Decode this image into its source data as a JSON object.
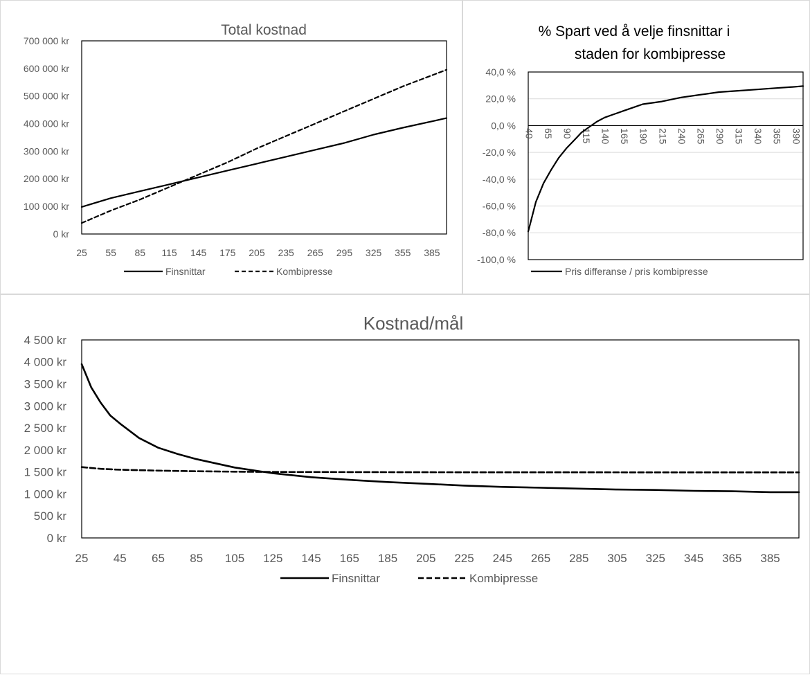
{
  "chart_data": [
    {
      "type": "line",
      "title": "Total kostnad",
      "xlabel": "",
      "ylabel": "",
      "x_ticks": [
        "25",
        "55",
        "85",
        "115",
        "145",
        "175",
        "205",
        "235",
        "265",
        "295",
        "325",
        "355",
        "385"
      ],
      "y_ticks": [
        "0 kr",
        "100 000 kr",
        "200 000 kr",
        "300 000 kr",
        "400 000 kr",
        "500 000 kr",
        "600 000 kr",
        "700 000 kr"
      ],
      "xlim": [
        25,
        400
      ],
      "ylim": [
        0,
        700000
      ],
      "grid": false,
      "legend_position": "bottom",
      "series": [
        {
          "name": "Finsnittar",
          "style": "solid",
          "x": [
            25,
            55,
            85,
            115,
            145,
            175,
            205,
            235,
            265,
            295,
            325,
            355,
            400
          ],
          "y": [
            98000,
            130000,
            155000,
            180000,
            205000,
            230000,
            255000,
            280000,
            305000,
            330000,
            360000,
            385000,
            420000
          ]
        },
        {
          "name": "Kombipresse",
          "style": "dashed",
          "x": [
            25,
            55,
            85,
            115,
            145,
            175,
            205,
            235,
            265,
            295,
            325,
            355,
            400
          ],
          "y": [
            40000,
            85000,
            125000,
            170000,
            215000,
            260000,
            310000,
            355000,
            400000,
            445000,
            490000,
            535000,
            595000
          ]
        }
      ]
    },
    {
      "type": "line",
      "title_lines": [
        "% Spart ved å velje finsnittar i",
        "staden for kombipresse"
      ],
      "xlabel": "",
      "ylabel": "",
      "x_ticks": [
        "40",
        "65",
        "90",
        "115",
        "140",
        "165",
        "190",
        "215",
        "240",
        "265",
        "290",
        "315",
        "340",
        "365",
        "390"
      ],
      "y_ticks": [
        "-100,0 %",
        "-80,0 %",
        "-60,0 %",
        "-40,0 %",
        "-20,0 %",
        "0,0 %",
        "20,0 %",
        "40,0 %"
      ],
      "xlim": [
        40,
        400
      ],
      "ylim": [
        -100,
        40
      ],
      "grid": true,
      "legend_position": "bottom",
      "series": [
        {
          "name": "Pris differanse / pris kombipresse",
          "style": "solid",
          "x": [
            40,
            50,
            60,
            70,
            80,
            90,
            100,
            110,
            120,
            130,
            140,
            150,
            165,
            180,
            190,
            215,
            240,
            265,
            290,
            315,
            340,
            365,
            390,
            400
          ],
          "y": [
            -79,
            -57,
            -43,
            -33,
            -24,
            -17,
            -11,
            -5,
            -1,
            3,
            6,
            8,
            11,
            14,
            16,
            18,
            21,
            23,
            25,
            26,
            27,
            28,
            29,
            29.5
          ]
        }
      ]
    },
    {
      "type": "line",
      "title": "Kostnad/mål",
      "xlabel": "",
      "ylabel": "",
      "x_ticks": [
        "25",
        "45",
        "65",
        "85",
        "105",
        "125",
        "145",
        "165",
        "185",
        "205",
        "225",
        "245",
        "265",
        "285",
        "305",
        "325",
        "345",
        "365",
        "385"
      ],
      "y_ticks": [
        "0 kr",
        "500 kr",
        "1 000 kr",
        "1 500 kr",
        "2 000 kr",
        "2 500 kr",
        "3 000 kr",
        "3 500 kr",
        "4 000 kr",
        "4 500 kr"
      ],
      "xlim": [
        25,
        400
      ],
      "ylim": [
        0,
        4500
      ],
      "grid": false,
      "legend_position": "bottom",
      "series": [
        {
          "name": "Finsnittar",
          "style": "solid",
          "x": [
            25,
            30,
            35,
            40,
            45,
            55,
            65,
            75,
            85,
            105,
            125,
            145,
            165,
            185,
            205,
            225,
            245,
            265,
            285,
            305,
            325,
            345,
            365,
            385,
            400
          ],
          "y": [
            3950,
            3420,
            3070,
            2780,
            2600,
            2270,
            2050,
            1910,
            1790,
            1600,
            1470,
            1380,
            1320,
            1270,
            1230,
            1190,
            1160,
            1140,
            1120,
            1100,
            1090,
            1070,
            1060,
            1040,
            1040
          ]
        },
        {
          "name": "Kombipresse",
          "style": "dashed",
          "x": [
            25,
            35,
            45,
            65,
            85,
            105,
            125,
            145,
            165,
            185,
            205,
            245,
            285,
            325,
            365,
            400
          ],
          "y": [
            1610,
            1570,
            1550,
            1530,
            1515,
            1505,
            1500,
            1498,
            1496,
            1494,
            1493,
            1492,
            1491,
            1490,
            1490,
            1490
          ]
        }
      ]
    }
  ]
}
